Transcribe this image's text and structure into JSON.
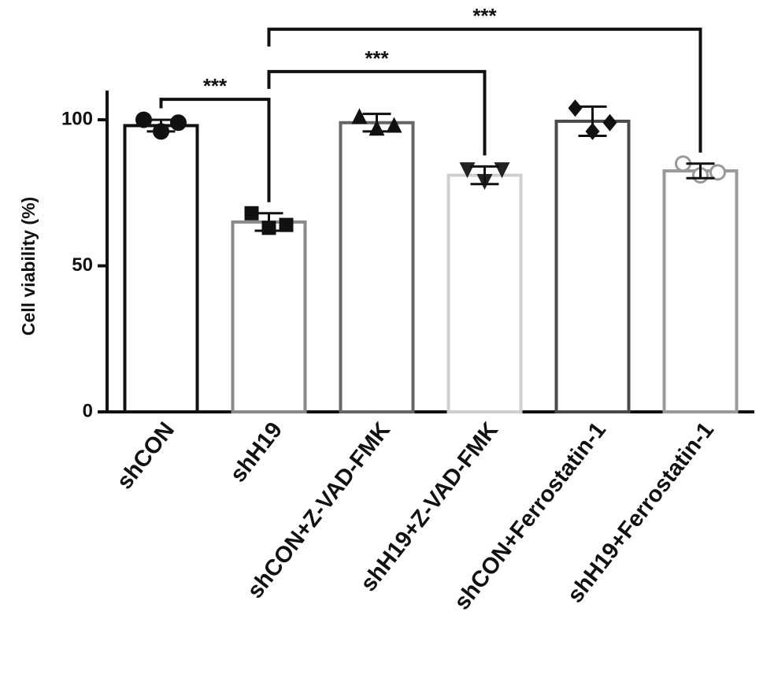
{
  "chart_data": {
    "type": "bar",
    "ylabel": "Cell viability (%)",
    "categories": [
      "shCON",
      "shH19",
      "shCON+Z-VAD-FMK",
      "shH19+Z-VAD-FMK",
      "shCON+Ferrostatin-1",
      "shH19+Ferrostatin-1"
    ],
    "values": [
      98,
      65,
      99,
      81,
      99.5,
      82.5
    ],
    "errors": [
      2,
      3,
      3,
      3,
      5,
      2.5
    ],
    "points": [
      [
        100,
        96,
        99
      ],
      [
        68,
        63,
        64
      ],
      [
        101,
        97,
        98
      ],
      [
        83,
        79,
        83
      ],
      [
        104,
        96,
        99
      ],
      [
        85,
        81,
        82
      ]
    ],
    "colors": [
      "#111111",
      "#8a8a8a",
      "#666666",
      "#cfcfcf",
      "#4a4a4a",
      "#9a9a9a"
    ],
    "markers": [
      "circle",
      "square",
      "triangle-up",
      "triangle-down",
      "diamond",
      "open-circle"
    ],
    "ylim": [
      0,
      110
    ],
    "yticks": [
      0,
      50,
      100
    ],
    "annotations": [
      {
        "text": "***",
        "from": 0,
        "to": 1,
        "y": 107
      },
      {
        "text": "***",
        "from": 1,
        "to": 3,
        "y": 116.5
      },
      {
        "text": "***",
        "from": 1,
        "to": 5,
        "y": 131
      }
    ]
  }
}
